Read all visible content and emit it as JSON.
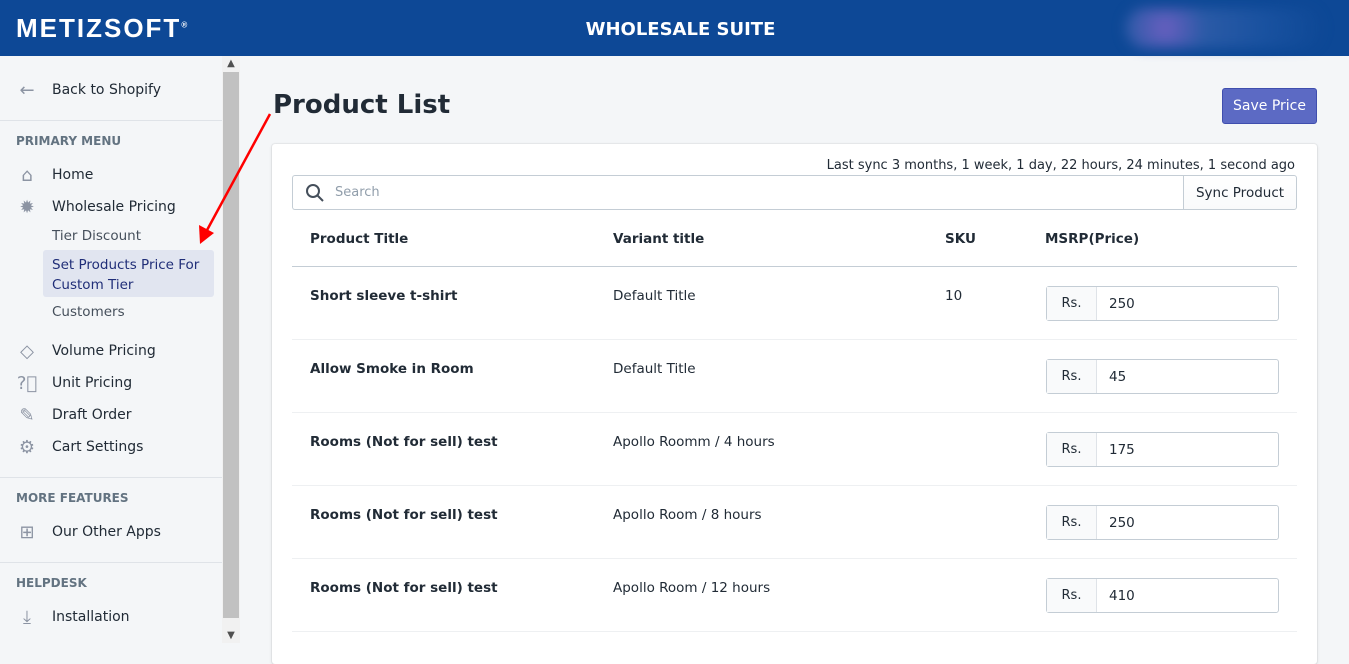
{
  "header": {
    "logo": "METIZSOFT",
    "logo_mark": "®",
    "title": "WHOLESALE SUITE"
  },
  "sidebar": {
    "back": "Back to Shopify",
    "primary_heading": "PRIMARY MENU",
    "items": [
      {
        "label": "Home",
        "icon": "home-icon"
      },
      {
        "label": "Wholesale Pricing",
        "icon": "badge-percent-icon"
      }
    ],
    "subitems": [
      "Tier Discount",
      "Set Products Price For Custom Tier",
      "Customers"
    ],
    "items2": [
      {
        "label": "Volume Pricing",
        "icon": "tag-icon"
      },
      {
        "label": "Unit Pricing",
        "icon": "question-icon"
      },
      {
        "label": "Draft Order",
        "icon": "edit-icon"
      },
      {
        "label": "Cart Settings",
        "icon": "gear-icon"
      }
    ],
    "more_heading": "MORE FEATURES",
    "other_apps": "Our Other Apps",
    "help_heading": "HELPDESK",
    "installation": "Installation"
  },
  "page": {
    "title": "Product List",
    "save_label": "Save Price",
    "last_sync": "Last sync 3 months, 1 week, 1 day, 22 hours, 24 minutes, 1 second ago",
    "search_placeholder": "Search",
    "sync_label": "Sync Product"
  },
  "table": {
    "headers": [
      "Product Title",
      "Variant title",
      "SKU",
      "MSRP(Price)"
    ],
    "currency": "Rs.",
    "rows": [
      {
        "title": "Short sleeve t-shirt",
        "variant": "Default Title",
        "sku": "10",
        "price": "250"
      },
      {
        "title": "Allow Smoke in Room",
        "variant": "Default Title",
        "sku": "",
        "price": "45"
      },
      {
        "title": "Rooms (Not for sell) test",
        "variant": "Apollo Roomm / 4 hours",
        "sku": "",
        "price": "175"
      },
      {
        "title": "Rooms (Not for sell) test",
        "variant": "Apollo Room / 8 hours",
        "sku": "",
        "price": "250"
      },
      {
        "title": "Rooms (Not for sell) test",
        "variant": "Apollo Room / 12 hours",
        "sku": "",
        "price": "410"
      }
    ]
  },
  "colors": {
    "header": "#0d4896",
    "primary_button": "#5c6ac4",
    "annotation_arrow": "#ff0000"
  }
}
